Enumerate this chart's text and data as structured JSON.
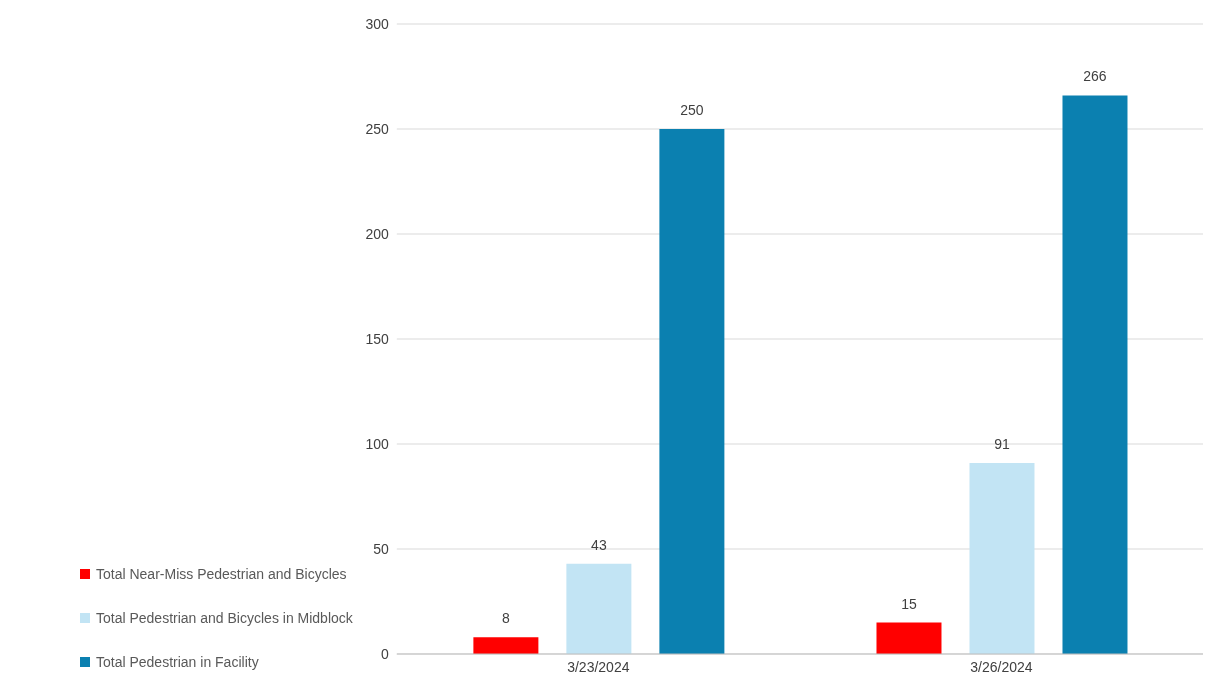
{
  "chart_data": {
    "type": "bar",
    "categories": [
      "3/23/2024",
      "3/26/2024"
    ],
    "series": [
      {
        "name": "Total Near-Miss Pedestrian and Bicycles",
        "color": "#ff0000",
        "values": [
          8,
          15
        ]
      },
      {
        "name": "Total Pedestrian and Bicycles in Midblock",
        "color": "#c2e4f4",
        "values": [
          43,
          91
        ]
      },
      {
        "name": "Total Pedestrian in Facility",
        "color": "#0b80b0",
        "values": [
          250,
          266
        ]
      }
    ],
    "ylim": [
      0,
      300
    ],
    "yticks": [
      0,
      50,
      100,
      150,
      200,
      250,
      300
    ],
    "grid": "y",
    "data_labels": true,
    "legend": "bottom left"
  }
}
